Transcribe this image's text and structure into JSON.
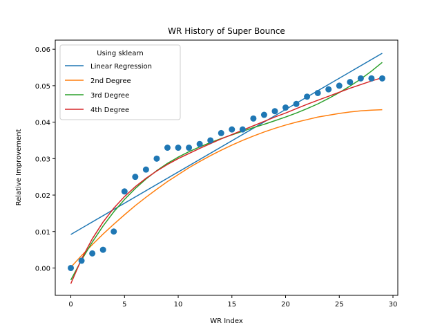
{
  "chart_data": {
    "type": "line",
    "title": "WR History of Super Bounce",
    "xlabel": "WR Index",
    "ylabel": "Relative Improvement",
    "xlim": [
      -1.45,
      30.45
    ],
    "ylim": [
      -0.0075,
      0.0625
    ],
    "xticks": [
      0,
      5,
      10,
      15,
      20,
      25,
      30
    ],
    "yticks": [
      0.0,
      0.01,
      0.02,
      0.03,
      0.04,
      0.05,
      0.06
    ],
    "xtick_labels": [
      "0",
      "5",
      "10",
      "15",
      "20",
      "25",
      "30"
    ],
    "ytick_labels": [
      "0.00",
      "0.01",
      "0.02",
      "0.03",
      "0.04",
      "0.05",
      "0.06"
    ],
    "grid": false,
    "legend": {
      "title": "Using sklearn",
      "placement": "top-left"
    },
    "scatter": {
      "color": "#1f77b4",
      "x": [
        0,
        1,
        2,
        3,
        4,
        5,
        6,
        7,
        8,
        9,
        10,
        11,
        12,
        13,
        14,
        15,
        16,
        17,
        18,
        19,
        20,
        21,
        22,
        23,
        24,
        25,
        26,
        27,
        28,
        29
      ],
      "y": [
        0.0,
        0.002,
        0.004,
        0.005,
        0.01,
        0.021,
        0.025,
        0.027,
        0.03,
        0.033,
        0.033,
        0.033,
        0.034,
        0.035,
        0.037,
        0.038,
        0.038,
        0.041,
        0.042,
        0.043,
        0.044,
        0.045,
        0.047,
        0.048,
        0.049,
        0.05,
        0.051,
        0.052,
        0.052,
        0.052
      ]
    },
    "series": [
      {
        "name": "Linear Regression",
        "color": "#1f77b4",
        "x": [
          0,
          29
        ],
        "y": [
          0.0092,
          0.0589
        ]
      },
      {
        "name": "2nd Degree",
        "color": "#ff7f0e",
        "x": [
          0,
          1,
          2,
          3,
          4,
          5,
          6,
          7,
          8,
          9,
          10,
          11,
          12,
          13,
          14,
          15,
          16,
          17,
          18,
          19,
          20,
          21,
          22,
          23,
          24,
          25,
          26,
          27,
          28,
          29
        ],
        "y": [
          0.0002,
          0.0034,
          0.0064,
          0.0093,
          0.012,
          0.0146,
          0.0171,
          0.0194,
          0.0216,
          0.0237,
          0.0256,
          0.0275,
          0.0292,
          0.0308,
          0.0323,
          0.0337,
          0.035,
          0.0362,
          0.0373,
          0.0383,
          0.0392,
          0.04,
          0.0407,
          0.0414,
          0.0419,
          0.0424,
          0.0428,
          0.0431,
          0.0433,
          0.0434
        ]
      },
      {
        "name": "3rd Degree",
        "color": "#2ca02c",
        "x": [
          0,
          1,
          2,
          3,
          4,
          5,
          6,
          7,
          8,
          9,
          10,
          11,
          12,
          13,
          14,
          15,
          16,
          17,
          18,
          19,
          20,
          21,
          22,
          23,
          24,
          25,
          26,
          27,
          28,
          29
        ],
        "y": [
          -0.0033,
          0.0022,
          0.0071,
          0.0115,
          0.0154,
          0.0188,
          0.0218,
          0.0244,
          0.0267,
          0.0287,
          0.0304,
          0.0319,
          0.0332,
          0.0344,
          0.0355,
          0.0365,
          0.0375,
          0.0385,
          0.0394,
          0.0404,
          0.0414,
          0.0425,
          0.0437,
          0.045,
          0.0465,
          0.0481,
          0.0499,
          0.0518,
          0.054,
          0.0564
        ]
      },
      {
        "name": "4th Degree",
        "color": "#d62728",
        "x": [
          0,
          1,
          2,
          3,
          4,
          5,
          6,
          7,
          8,
          9,
          10,
          11,
          12,
          13,
          14,
          15,
          16,
          17,
          18,
          19,
          20,
          21,
          22,
          23,
          24,
          25,
          26,
          27,
          28,
          29
        ],
        "y": [
          -0.0043,
          0.0025,
          0.008,
          0.0126,
          0.0164,
          0.0196,
          0.0223,
          0.0246,
          0.0266,
          0.0284,
          0.03,
          0.0314,
          0.0328,
          0.0341,
          0.0354,
          0.0366,
          0.0378,
          0.039,
          0.0402,
          0.0414,
          0.0425,
          0.0437,
          0.0449,
          0.046,
          0.0471,
          0.0482,
          0.0493,
          0.0503,
          0.0513,
          0.0522
        ]
      }
    ]
  }
}
